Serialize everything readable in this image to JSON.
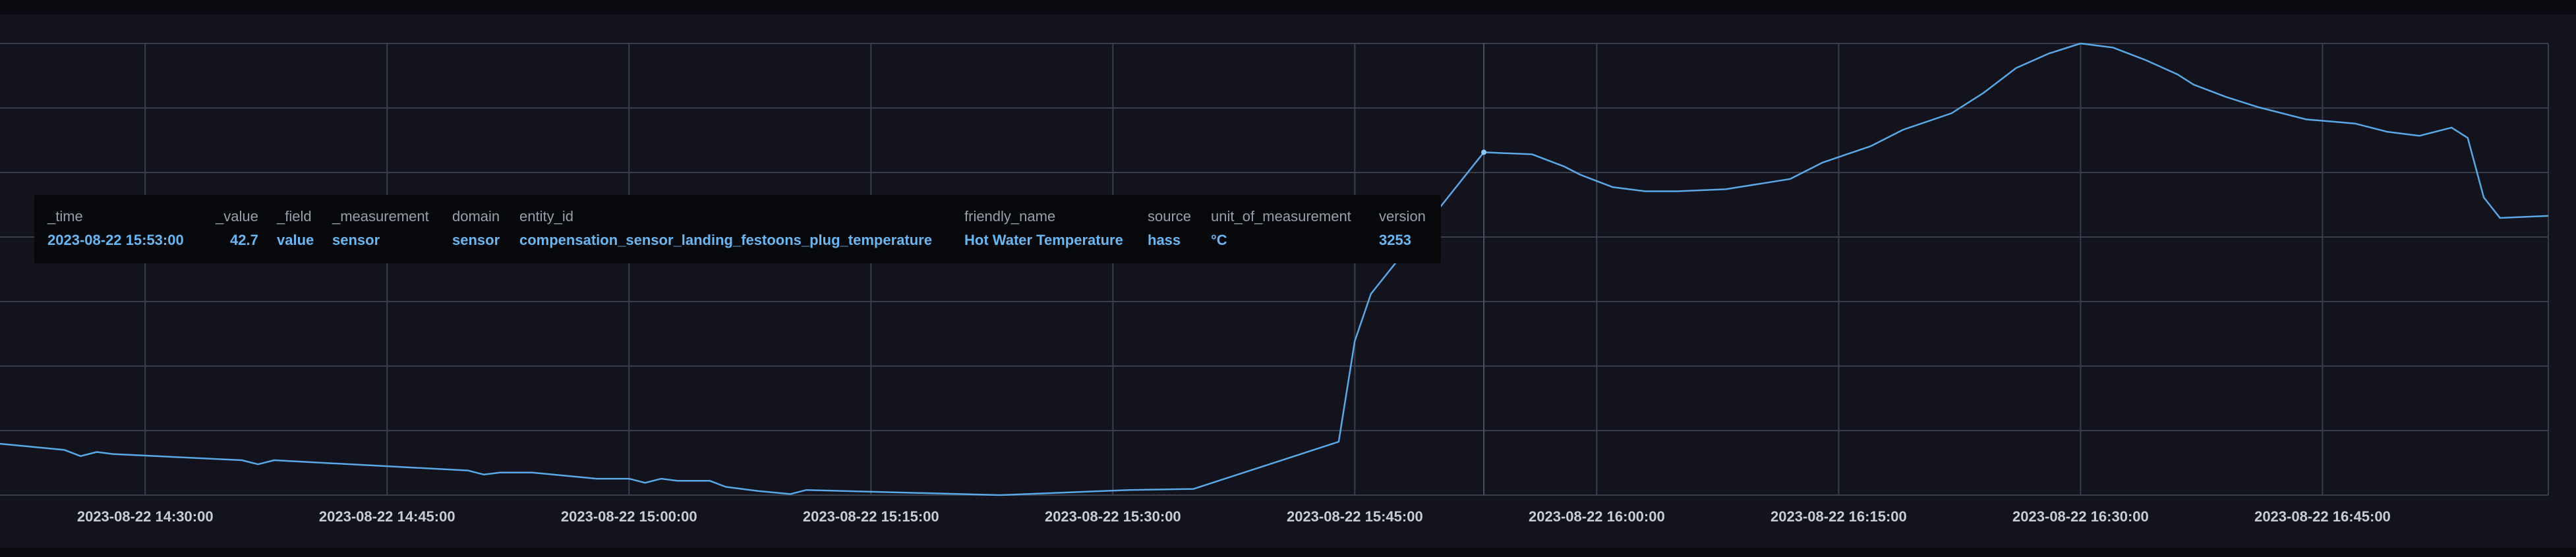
{
  "chart_data": {
    "type": "line",
    "title": "",
    "xlabel": "",
    "ylabel": "",
    "grid": true,
    "legend": "none",
    "x_ticks": [
      "2023-08-22 14:30:00",
      "2023-08-22 14:45:00",
      "2023-08-22 15:00:00",
      "2023-08-22 15:15:00",
      "2023-08-22 15:30:00",
      "2023-08-22 15:45:00",
      "2023-08-22 16:00:00",
      "2023-08-22 16:15:00",
      "2023-08-22 16:30:00",
      "2023-08-22 16:45:00"
    ],
    "xlim": [
      "2023-08-22 14:21:00",
      "2023-08-22 16:59:00"
    ],
    "ylim": [
      26,
      48
    ],
    "series": [
      {
        "color": "#5aa9e6",
        "points": [
          [
            "2023-08-22 14:21:00",
            28.5
          ],
          [
            "2023-08-22 14:25:00",
            28.2
          ],
          [
            "2023-08-22 14:26:00",
            27.9
          ],
          [
            "2023-08-22 14:27:00",
            28.1
          ],
          [
            "2023-08-22 14:28:00",
            28.0
          ],
          [
            "2023-08-22 14:36:00",
            27.7
          ],
          [
            "2023-08-22 14:37:00",
            27.5
          ],
          [
            "2023-08-22 14:38:00",
            27.7
          ],
          [
            "2023-08-22 14:50:00",
            27.2
          ],
          [
            "2023-08-22 14:51:00",
            27.0
          ],
          [
            "2023-08-22 14:52:00",
            27.1
          ],
          [
            "2023-08-22 14:54:00",
            27.1
          ],
          [
            "2023-08-22 14:58:00",
            26.8
          ],
          [
            "2023-08-22 15:00:00",
            26.8
          ],
          [
            "2023-08-22 15:01:00",
            26.6
          ],
          [
            "2023-08-22 15:02:00",
            26.8
          ],
          [
            "2023-08-22 15:03:00",
            26.7
          ],
          [
            "2023-08-22 15:05:00",
            26.7
          ],
          [
            "2023-08-22 15:06:00",
            26.4
          ],
          [
            "2023-08-22 15:08:00",
            26.2
          ],
          [
            "2023-08-22 15:10:00",
            26.05
          ],
          [
            "2023-08-22 15:11:00",
            26.25
          ],
          [
            "2023-08-22 15:23:00",
            26.0
          ],
          [
            "2023-08-22 15:31:00",
            26.25
          ],
          [
            "2023-08-22 15:35:00",
            26.3
          ],
          [
            "2023-08-22 15:44:00",
            28.6
          ],
          [
            "2023-08-22 15:45:00",
            33.5
          ],
          [
            "2023-08-22 15:46:00",
            35.8
          ],
          [
            "2023-08-22 15:53:00",
            42.7
          ],
          [
            "2023-08-22 15:56:00",
            42.6
          ],
          [
            "2023-08-22 15:58:00",
            42.0
          ],
          [
            "2023-08-22 15:59:00",
            41.6
          ],
          [
            "2023-08-22 16:01:00",
            41.0
          ],
          [
            "2023-08-22 16:03:00",
            40.8
          ],
          [
            "2023-08-22 16:05:00",
            40.8
          ],
          [
            "2023-08-22 16:08:00",
            40.9
          ],
          [
            "2023-08-22 16:12:00",
            41.4
          ],
          [
            "2023-08-22 16:14:00",
            42.2
          ],
          [
            "2023-08-22 16:17:00",
            43.0
          ],
          [
            "2023-08-22 16:19:00",
            43.8
          ],
          [
            "2023-08-22 16:22:00",
            44.6
          ],
          [
            "2023-08-22 16:24:00",
            45.6
          ],
          [
            "2023-08-22 16:26:00",
            46.8
          ],
          [
            "2023-08-22 16:28:00",
            47.5
          ],
          [
            "2023-08-22 16:30:00",
            48.0
          ],
          [
            "2023-08-22 16:32:00",
            47.8
          ],
          [
            "2023-08-22 16:34:00",
            47.2
          ],
          [
            "2023-08-22 16:36:00",
            46.5
          ],
          [
            "2023-08-22 16:37:00",
            46.0
          ],
          [
            "2023-08-22 16:39:00",
            45.4
          ],
          [
            "2023-08-22 16:41:00",
            44.9
          ],
          [
            "2023-08-22 16:44:00",
            44.3
          ],
          [
            "2023-08-22 16:47:00",
            44.1
          ],
          [
            "2023-08-22 16:49:00",
            43.7
          ],
          [
            "2023-08-22 16:51:00",
            43.5
          ],
          [
            "2023-08-22 16:53:00",
            43.9
          ],
          [
            "2023-08-22 16:54:00",
            43.4
          ],
          [
            "2023-08-22 16:55:00",
            40.5
          ],
          [
            "2023-08-22 16:56:00",
            39.5
          ],
          [
            "2023-08-22 16:59:00",
            39.6
          ]
        ]
      }
    ],
    "hover": {
      "time": "2023-08-22 15:53:00",
      "value": 42.7
    }
  },
  "tooltip": {
    "headers": {
      "time": "_time",
      "value": "_value",
      "field": "_field",
      "measurement": "_measurement",
      "domain": "domain",
      "entity_id": "entity_id",
      "friendly_name": "friendly_name",
      "source": "source",
      "unit": "unit_of_measurement",
      "version": "version"
    },
    "values": {
      "time": "2023-08-22 15:53:00",
      "value": "42.7",
      "field": "value",
      "measurement": "sensor",
      "domain": "sensor",
      "entity_id": "compensation_sensor_landing_festoons_plug_temperature",
      "friendly_name": "Hot Water Temperature",
      "source": "hass",
      "unit": "°C",
      "version": "3253"
    }
  },
  "colors": {
    "series": "#5aa9e6",
    "tooltip_value": "#69b6f0",
    "grid": "#3a3d4b",
    "panel_bg": "#12131c"
  }
}
